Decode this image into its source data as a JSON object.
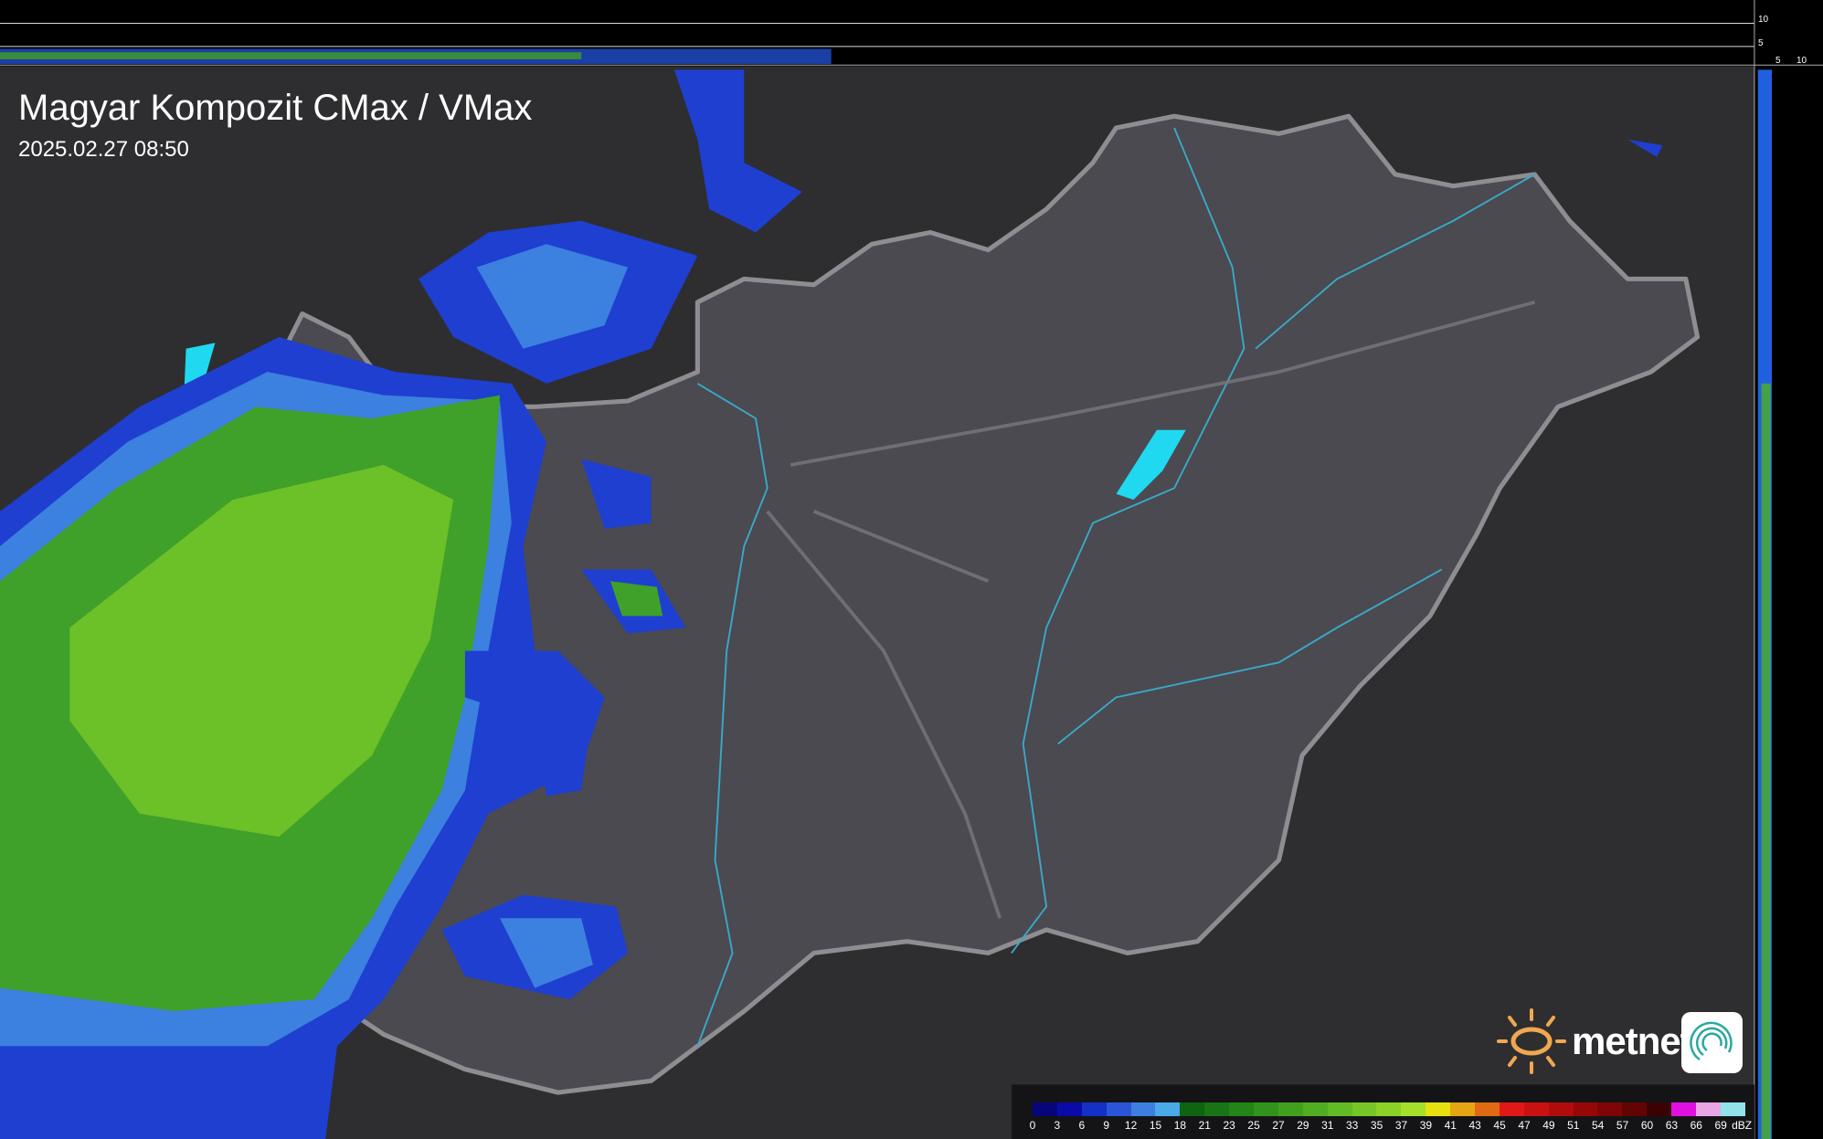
{
  "header": {
    "title": "Magyar Kompozit CMax / VMax",
    "timestamp": "2025.02.27 08:50"
  },
  "side_profile_axis": {
    "vertical_ticks": [
      "10",
      "5"
    ],
    "horizontal_ticks": [
      "5",
      "10"
    ]
  },
  "legend": {
    "unit": "dBZ",
    "labels": [
      "0",
      "3",
      "6",
      "9",
      "12",
      "15",
      "18",
      "21",
      "23",
      "25",
      "27",
      "29",
      "31",
      "33",
      "35",
      "37",
      "39",
      "41",
      "43",
      "45",
      "47",
      "49",
      "51",
      "54",
      "57",
      "60",
      "63",
      "66",
      "69"
    ],
    "colors": [
      "#06067a",
      "#0a0aa6",
      "#1530c4",
      "#2a55d6",
      "#3c7fe0",
      "#4aa9e8",
      "#0e6410",
      "#187414",
      "#238418",
      "#31931c",
      "#41a11f",
      "#51ae22",
      "#62ba24",
      "#75c626",
      "#8ad228",
      "#a2e02a",
      "#e6e010",
      "#e6a412",
      "#e06a14",
      "#e01818",
      "#c81212",
      "#b00c0c",
      "#960808",
      "#7e0606",
      "#620404",
      "#3a0202",
      "#e010e0",
      "#e8a6e6",
      "#92e2ea"
    ]
  },
  "branding": {
    "logo_text": "metnet",
    "colors": {
      "sun": "#f0a850",
      "app_icon": "#2aa8a0"
    }
  },
  "map": {
    "background": "#2e2e30",
    "country_fill": "#4a4a50",
    "border_color": "#9a9aa0",
    "river_color": "#3aa8c8",
    "lake_color": "#20d8f0"
  }
}
